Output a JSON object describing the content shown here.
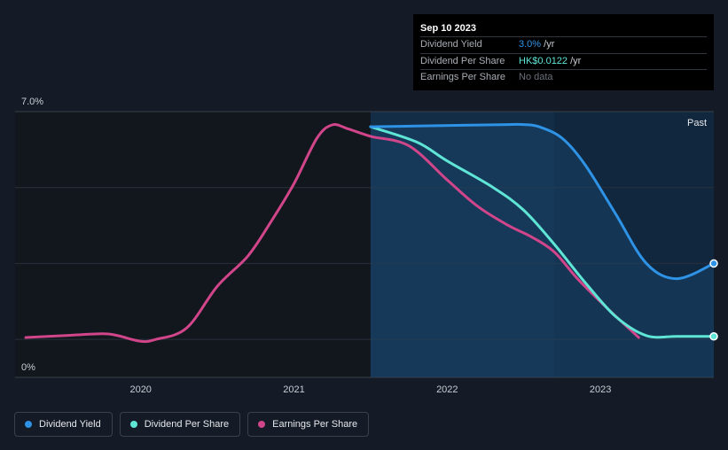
{
  "tooltip": {
    "date": "Sep 10 2023",
    "rows": [
      {
        "label": "Dividend Yield",
        "value": "3.0%",
        "unit": " /yr",
        "color": "#2e93e6"
      },
      {
        "label": "Dividend Per Share",
        "value": "HK$0.0122",
        "unit": " /yr",
        "color": "#5fe5d6"
      },
      {
        "label": "Earnings Per Share",
        "value": "No data"
      }
    ]
  },
  "legend": [
    {
      "label": "Dividend Yield",
      "color": "#2e93e6"
    },
    {
      "label": "Dividend Per Share",
      "color": "#5fe5d6"
    },
    {
      "label": "Earnings Per Share",
      "color": "#d1458a"
    }
  ],
  "chart_data": {
    "type": "line",
    "title": "",
    "xlabel": "",
    "ylabel": "",
    "xlim": [
      2019.18,
      2023.74
    ],
    "ylim": [
      0,
      7.0
    ],
    "y_tick_labels": [
      "7.0%",
      "0%"
    ],
    "x_ticks": [
      2020,
      2021,
      2022,
      2023
    ],
    "x_tick_labels": [
      "2020",
      "2021",
      "2022",
      "2023"
    ],
    "past_label": "Past",
    "shaded_from": 2021.5,
    "past_from": 2022.7,
    "colors": {
      "yield": "#2e93e6",
      "dps": "#5fe5d6",
      "eps": "#d1458a"
    },
    "series": [
      {
        "name": "Dividend Yield",
        "key": "yield",
        "end_marker": true,
        "x": [
          2021.5,
          2021.8,
          2022.1,
          2022.4,
          2022.5,
          2022.6,
          2022.75,
          2022.9,
          2023.1,
          2023.3,
          2023.5,
          2023.74
        ],
        "y": [
          6.6,
          6.62,
          6.64,
          6.66,
          6.66,
          6.6,
          6.3,
          5.6,
          4.3,
          3.0,
          2.6,
          3.0
        ]
      },
      {
        "name": "Dividend Per Share",
        "key": "dps",
        "end_marker": true,
        "x": [
          2021.5,
          2021.8,
          2022.0,
          2022.3,
          2022.5,
          2022.7,
          2022.9,
          2023.1,
          2023.3,
          2023.5,
          2023.74
        ],
        "y": [
          6.6,
          6.2,
          5.7,
          5.0,
          4.4,
          3.5,
          2.5,
          1.6,
          1.1,
          1.08,
          1.08
        ]
      },
      {
        "name": "Earnings Per Share",
        "key": "eps",
        "end_marker": false,
        "x": [
          2019.25,
          2019.5,
          2019.75,
          2019.85,
          2020.0,
          2020.1,
          2020.3,
          2020.5,
          2020.7,
          2020.85,
          2021.0,
          2021.15,
          2021.25,
          2021.35,
          2021.5,
          2021.75,
          2022.0,
          2022.2,
          2022.4,
          2022.55,
          2022.7,
          2022.85,
          2023.05,
          2023.25
        ],
        "y": [
          1.05,
          1.1,
          1.15,
          1.1,
          0.95,
          1.0,
          1.3,
          2.4,
          3.2,
          4.1,
          5.1,
          6.3,
          6.65,
          6.55,
          6.35,
          6.1,
          5.2,
          4.5,
          4.0,
          3.7,
          3.3,
          2.6,
          1.8,
          1.05
        ]
      }
    ]
  }
}
